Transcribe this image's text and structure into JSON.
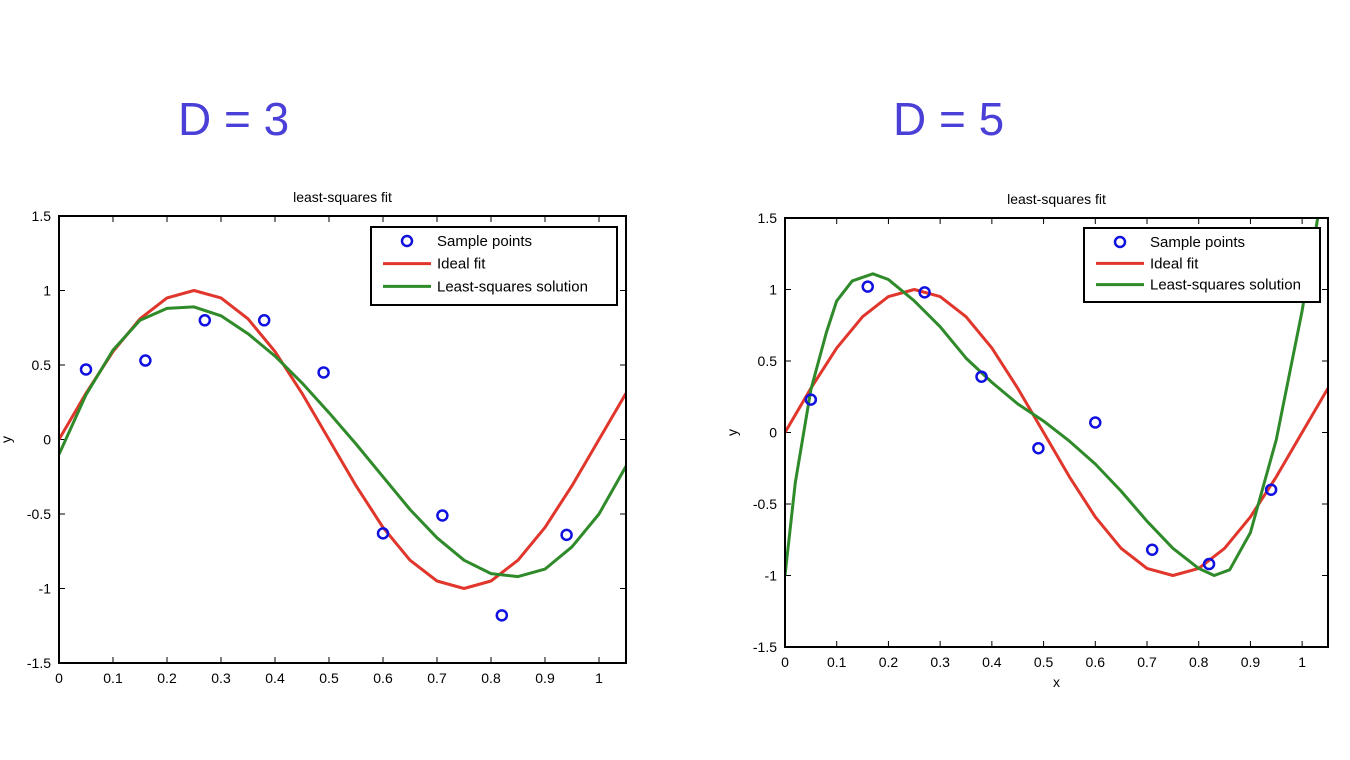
{
  "headings": {
    "left": "D = 3",
    "right": "D = 5"
  },
  "colors": {
    "heading": "#4a3fd6",
    "samples": "#1010e0",
    "ideal": "#e0362c",
    "lsq": "#2f8a2a"
  },
  "chart_data": [
    {
      "type": "line",
      "title": "least-squares fit",
      "xlabel": "",
      "ylabel": "y",
      "xlim": [
        0,
        1.05
      ],
      "ylim": [
        -1.5,
        1.5
      ],
      "xticks": [
        0,
        0.1,
        0.2,
        0.3,
        0.4,
        0.5,
        0.6,
        0.7,
        0.8,
        0.9,
        1
      ],
      "yticks": [
        -1.5,
        -1,
        -0.5,
        0,
        0.5,
        1,
        1.5
      ],
      "legend": {
        "placement": "top-right",
        "entries": [
          "Sample points",
          "Ideal fit",
          "Least-squares solution"
        ]
      },
      "series": [
        {
          "name": "Sample points",
          "kind": "scatter",
          "x": [
            0.05,
            0.16,
            0.27,
            0.38,
            0.49,
            0.6,
            0.71,
            0.82,
            0.94
          ],
          "y": [
            0.47,
            0.53,
            0.8,
            0.8,
            0.45,
            -0.63,
            -0.51,
            -1.18,
            -0.64
          ]
        },
        {
          "name": "Ideal fit",
          "kind": "line",
          "x": [
            0,
            0.05,
            0.1,
            0.15,
            0.2,
            0.25,
            0.3,
            0.35,
            0.4,
            0.45,
            0.5,
            0.55,
            0.6,
            0.65,
            0.7,
            0.75,
            0.8,
            0.85,
            0.9,
            0.95,
            1,
            1.05
          ],
          "y": [
            0,
            0.31,
            0.59,
            0.81,
            0.95,
            1,
            0.95,
            0.81,
            0.59,
            0.31,
            0,
            -0.31,
            -0.59,
            -0.81,
            -0.95,
            -1,
            -0.95,
            -0.81,
            -0.59,
            -0.31,
            0,
            0.31
          ]
        },
        {
          "name": "Least-squares solution",
          "kind": "line",
          "x": [
            0,
            0.05,
            0.1,
            0.15,
            0.2,
            0.25,
            0.3,
            0.35,
            0.4,
            0.45,
            0.5,
            0.55,
            0.6,
            0.65,
            0.7,
            0.75,
            0.8,
            0.85,
            0.9,
            0.95,
            1,
            1.05
          ],
          "y": [
            -0.1,
            0.3,
            0.6,
            0.8,
            0.88,
            0.89,
            0.83,
            0.71,
            0.56,
            0.38,
            0.18,
            -0.03,
            -0.25,
            -0.47,
            -0.66,
            -0.81,
            -0.9,
            -0.92,
            -0.87,
            -0.72,
            -0.5,
            -0.18
          ]
        }
      ]
    },
    {
      "type": "line",
      "title": "least-squares fit",
      "xlabel": "x",
      "ylabel": "y",
      "xlim": [
        0,
        1.05
      ],
      "ylim": [
        -1.5,
        1.5
      ],
      "xticks": [
        0,
        0.1,
        0.2,
        0.3,
        0.4,
        0.5,
        0.6,
        0.7,
        0.8,
        0.9,
        1
      ],
      "yticks": [
        -1.5,
        -1,
        -0.5,
        0,
        0.5,
        1,
        1.5
      ],
      "legend": {
        "placement": "top-right",
        "entries": [
          "Sample points",
          "Ideal fit",
          "Least-squares solution"
        ]
      },
      "series": [
        {
          "name": "Sample points",
          "kind": "scatter",
          "x": [
            0.05,
            0.16,
            0.27,
            0.38,
            0.49,
            0.6,
            0.71,
            0.82,
            0.94
          ],
          "y": [
            0.23,
            1.02,
            0.98,
            0.39,
            -0.11,
            0.07,
            -0.82,
            -0.92,
            -0.4
          ]
        },
        {
          "name": "Ideal fit",
          "kind": "line",
          "x": [
            0,
            0.05,
            0.1,
            0.15,
            0.2,
            0.25,
            0.3,
            0.35,
            0.4,
            0.45,
            0.5,
            0.55,
            0.6,
            0.65,
            0.7,
            0.75,
            0.8,
            0.85,
            0.9,
            0.95,
            1,
            1.05
          ],
          "y": [
            0,
            0.31,
            0.59,
            0.81,
            0.95,
            1,
            0.95,
            0.81,
            0.59,
            0.31,
            0,
            -0.31,
            -0.59,
            -0.81,
            -0.95,
            -1,
            -0.95,
            -0.81,
            -0.59,
            -0.31,
            0,
            0.31
          ]
        },
        {
          "name": "Least-squares solution",
          "kind": "line",
          "x": [
            0,
            0.02,
            0.05,
            0.08,
            0.1,
            0.13,
            0.17,
            0.2,
            0.25,
            0.3,
            0.35,
            0.4,
            0.45,
            0.5,
            0.55,
            0.6,
            0.65,
            0.7,
            0.75,
            0.8,
            0.83,
            0.86,
            0.9,
            0.95,
            1.0,
            1.03
          ],
          "y": [
            -1.0,
            -0.35,
            0.3,
            0.7,
            0.92,
            1.06,
            1.11,
            1.07,
            0.92,
            0.74,
            0.52,
            0.35,
            0.2,
            0.08,
            -0.06,
            -0.22,
            -0.41,
            -0.62,
            -0.81,
            -0.95,
            -1.0,
            -0.96,
            -0.7,
            -0.05,
            0.85,
            1.5
          ]
        }
      ]
    }
  ]
}
